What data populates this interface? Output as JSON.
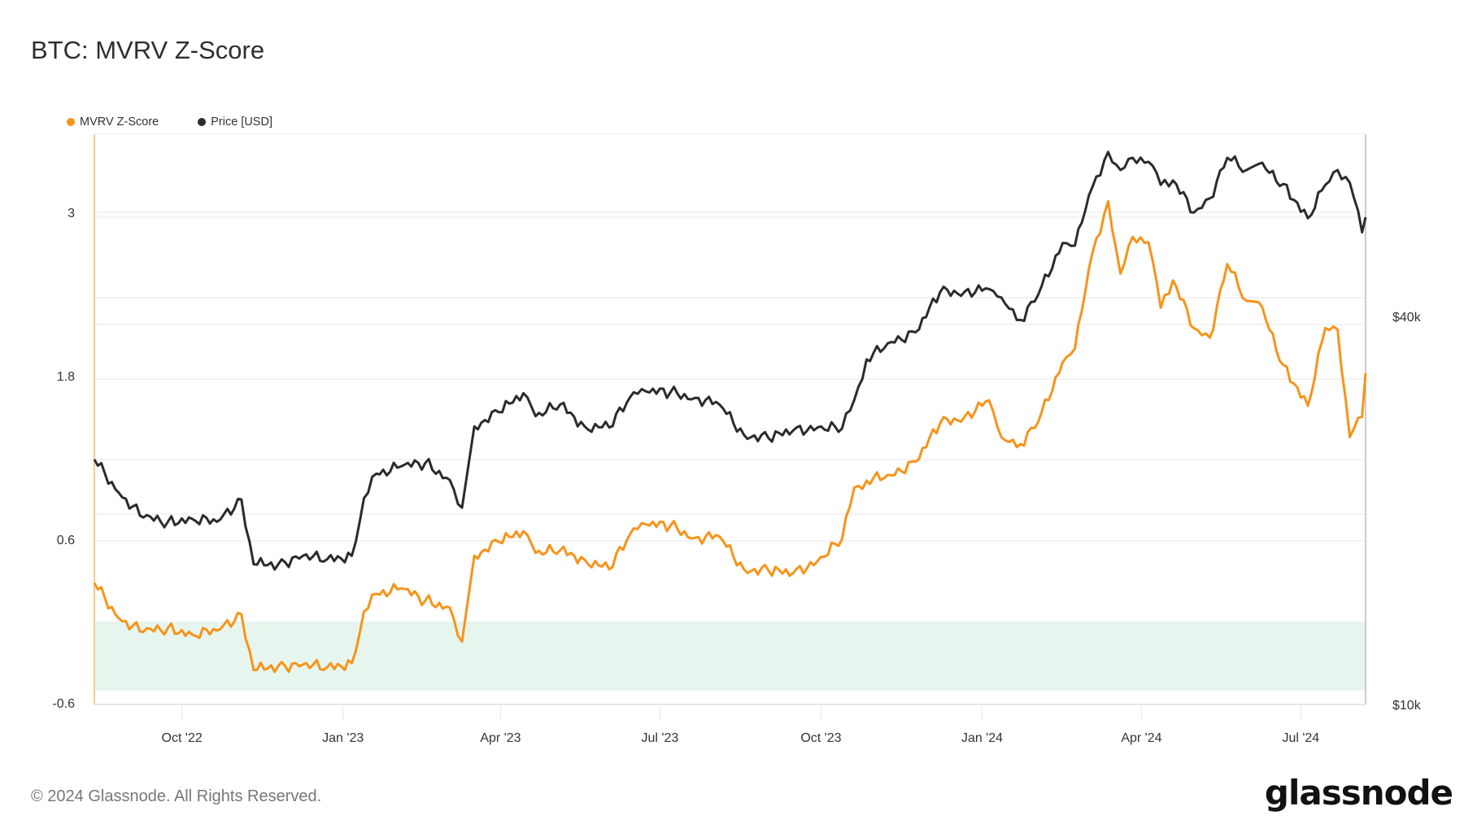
{
  "title": "BTC: MVRV Z-Score",
  "legend": [
    {
      "label": "MVRV Z-Score",
      "color": "#f7931a"
    },
    {
      "label": "Price [USD]",
      "color": "#2b2b2b"
    }
  ],
  "footer": "© 2024 Glassnode. All Rights Reserved.",
  "logo": "glassnode",
  "chart_data": {
    "type": "line",
    "title": "BTC: MVRV Z-Score",
    "xlabel": "",
    "ylabel": "MVRV Z-Score",
    "y2label": "Price [USD]",
    "x_ticks": [
      "Oct '22",
      "Jan '23",
      "Apr '23",
      "Jul '23",
      "Oct '23",
      "Jan '24",
      "Apr '24",
      "Jul '24"
    ],
    "y_ticks": [
      -0.6,
      0.6,
      1.8,
      3
    ],
    "y2_ticks": [
      "$10k",
      "$40k"
    ],
    "y2_scale": "log",
    "ylim": [
      -0.6,
      3.6
    ],
    "highlight_band": {
      "from": -0.5,
      "to": 0.0,
      "color": "#e6f6ee"
    },
    "grid": true,
    "x": [
      "2022-08-12",
      "2022-08-26",
      "2022-09-09",
      "2022-09-23",
      "2022-10-07",
      "2022-10-21",
      "2022-11-04",
      "2022-11-11",
      "2022-11-25",
      "2022-12-09",
      "2022-12-23",
      "2023-01-06",
      "2023-01-13",
      "2023-01-20",
      "2023-02-03",
      "2023-02-17",
      "2023-03-03",
      "2023-03-10",
      "2023-03-17",
      "2023-03-31",
      "2023-04-14",
      "2023-04-21",
      "2023-05-05",
      "2023-05-19",
      "2023-06-02",
      "2023-06-16",
      "2023-06-23",
      "2023-07-07",
      "2023-07-21",
      "2023-08-04",
      "2023-08-18",
      "2023-09-01",
      "2023-09-15",
      "2023-09-29",
      "2023-10-13",
      "2023-10-20",
      "2023-10-27",
      "2023-11-10",
      "2023-11-24",
      "2023-12-08",
      "2023-12-22",
      "2024-01-05",
      "2024-01-12",
      "2024-01-23",
      "2024-02-02",
      "2024-02-16",
      "2024-02-23",
      "2024-03-04",
      "2024-03-13",
      "2024-03-20",
      "2024-03-27",
      "2024-04-05",
      "2024-04-12",
      "2024-04-19",
      "2024-05-01",
      "2024-05-10",
      "2024-05-20",
      "2024-05-31",
      "2024-06-07",
      "2024-06-21",
      "2024-07-05",
      "2024-07-15",
      "2024-07-22",
      "2024-07-29",
      "2024-08-05",
      "2024-08-07"
    ],
    "series": [
      {
        "name": "MVRV Z-Score",
        "color": "#f7931a",
        "values": [
          0.28,
          0.02,
          -0.08,
          -0.05,
          -0.1,
          -0.07,
          0.05,
          -0.36,
          -0.33,
          -0.32,
          -0.34,
          -0.31,
          0.07,
          0.2,
          0.24,
          0.15,
          0.1,
          -0.15,
          0.48,
          0.58,
          0.66,
          0.5,
          0.52,
          0.45,
          0.38,
          0.68,
          0.71,
          0.7,
          0.61,
          0.62,
          0.38,
          0.37,
          0.35,
          0.44,
          0.6,
          0.98,
          1.03,
          1.07,
          1.17,
          1.45,
          1.5,
          1.62,
          1.35,
          1.3,
          1.46,
          1.9,
          2.0,
          2.7,
          3.08,
          2.55,
          2.82,
          2.78,
          2.3,
          2.5,
          2.15,
          2.08,
          2.62,
          2.35,
          2.34,
          1.88,
          1.58,
          2.15,
          2.14,
          1.35,
          1.5,
          1.82
        ]
      },
      {
        "name": "Price [USD]",
        "color": "#2b2b2b",
        "values": [
          24.0,
          21.3,
          19.5,
          19.2,
          19.4,
          19.2,
          20.8,
          16.5,
          16.5,
          17.0,
          16.8,
          17.0,
          20.9,
          22.8,
          23.4,
          23.7,
          22.3,
          20.2,
          27.0,
          28.4,
          30.4,
          28.0,
          29.2,
          27.0,
          26.9,
          30.5,
          30.6,
          30.5,
          29.9,
          29.2,
          26.2,
          25.9,
          26.6,
          26.9,
          26.8,
          29.7,
          34.3,
          36.5,
          37.8,
          43.6,
          43.7,
          44.1,
          42.8,
          39.5,
          43.2,
          52.0,
          51.5,
          63.5,
          72.0,
          67.5,
          70.5,
          69.5,
          64.0,
          65.0,
          58.0,
          61.0,
          70.5,
          67.5,
          69.0,
          64.2,
          56.8,
          64.0,
          67.5,
          64.5,
          54.0,
          57.0
        ]
      }
    ]
  }
}
